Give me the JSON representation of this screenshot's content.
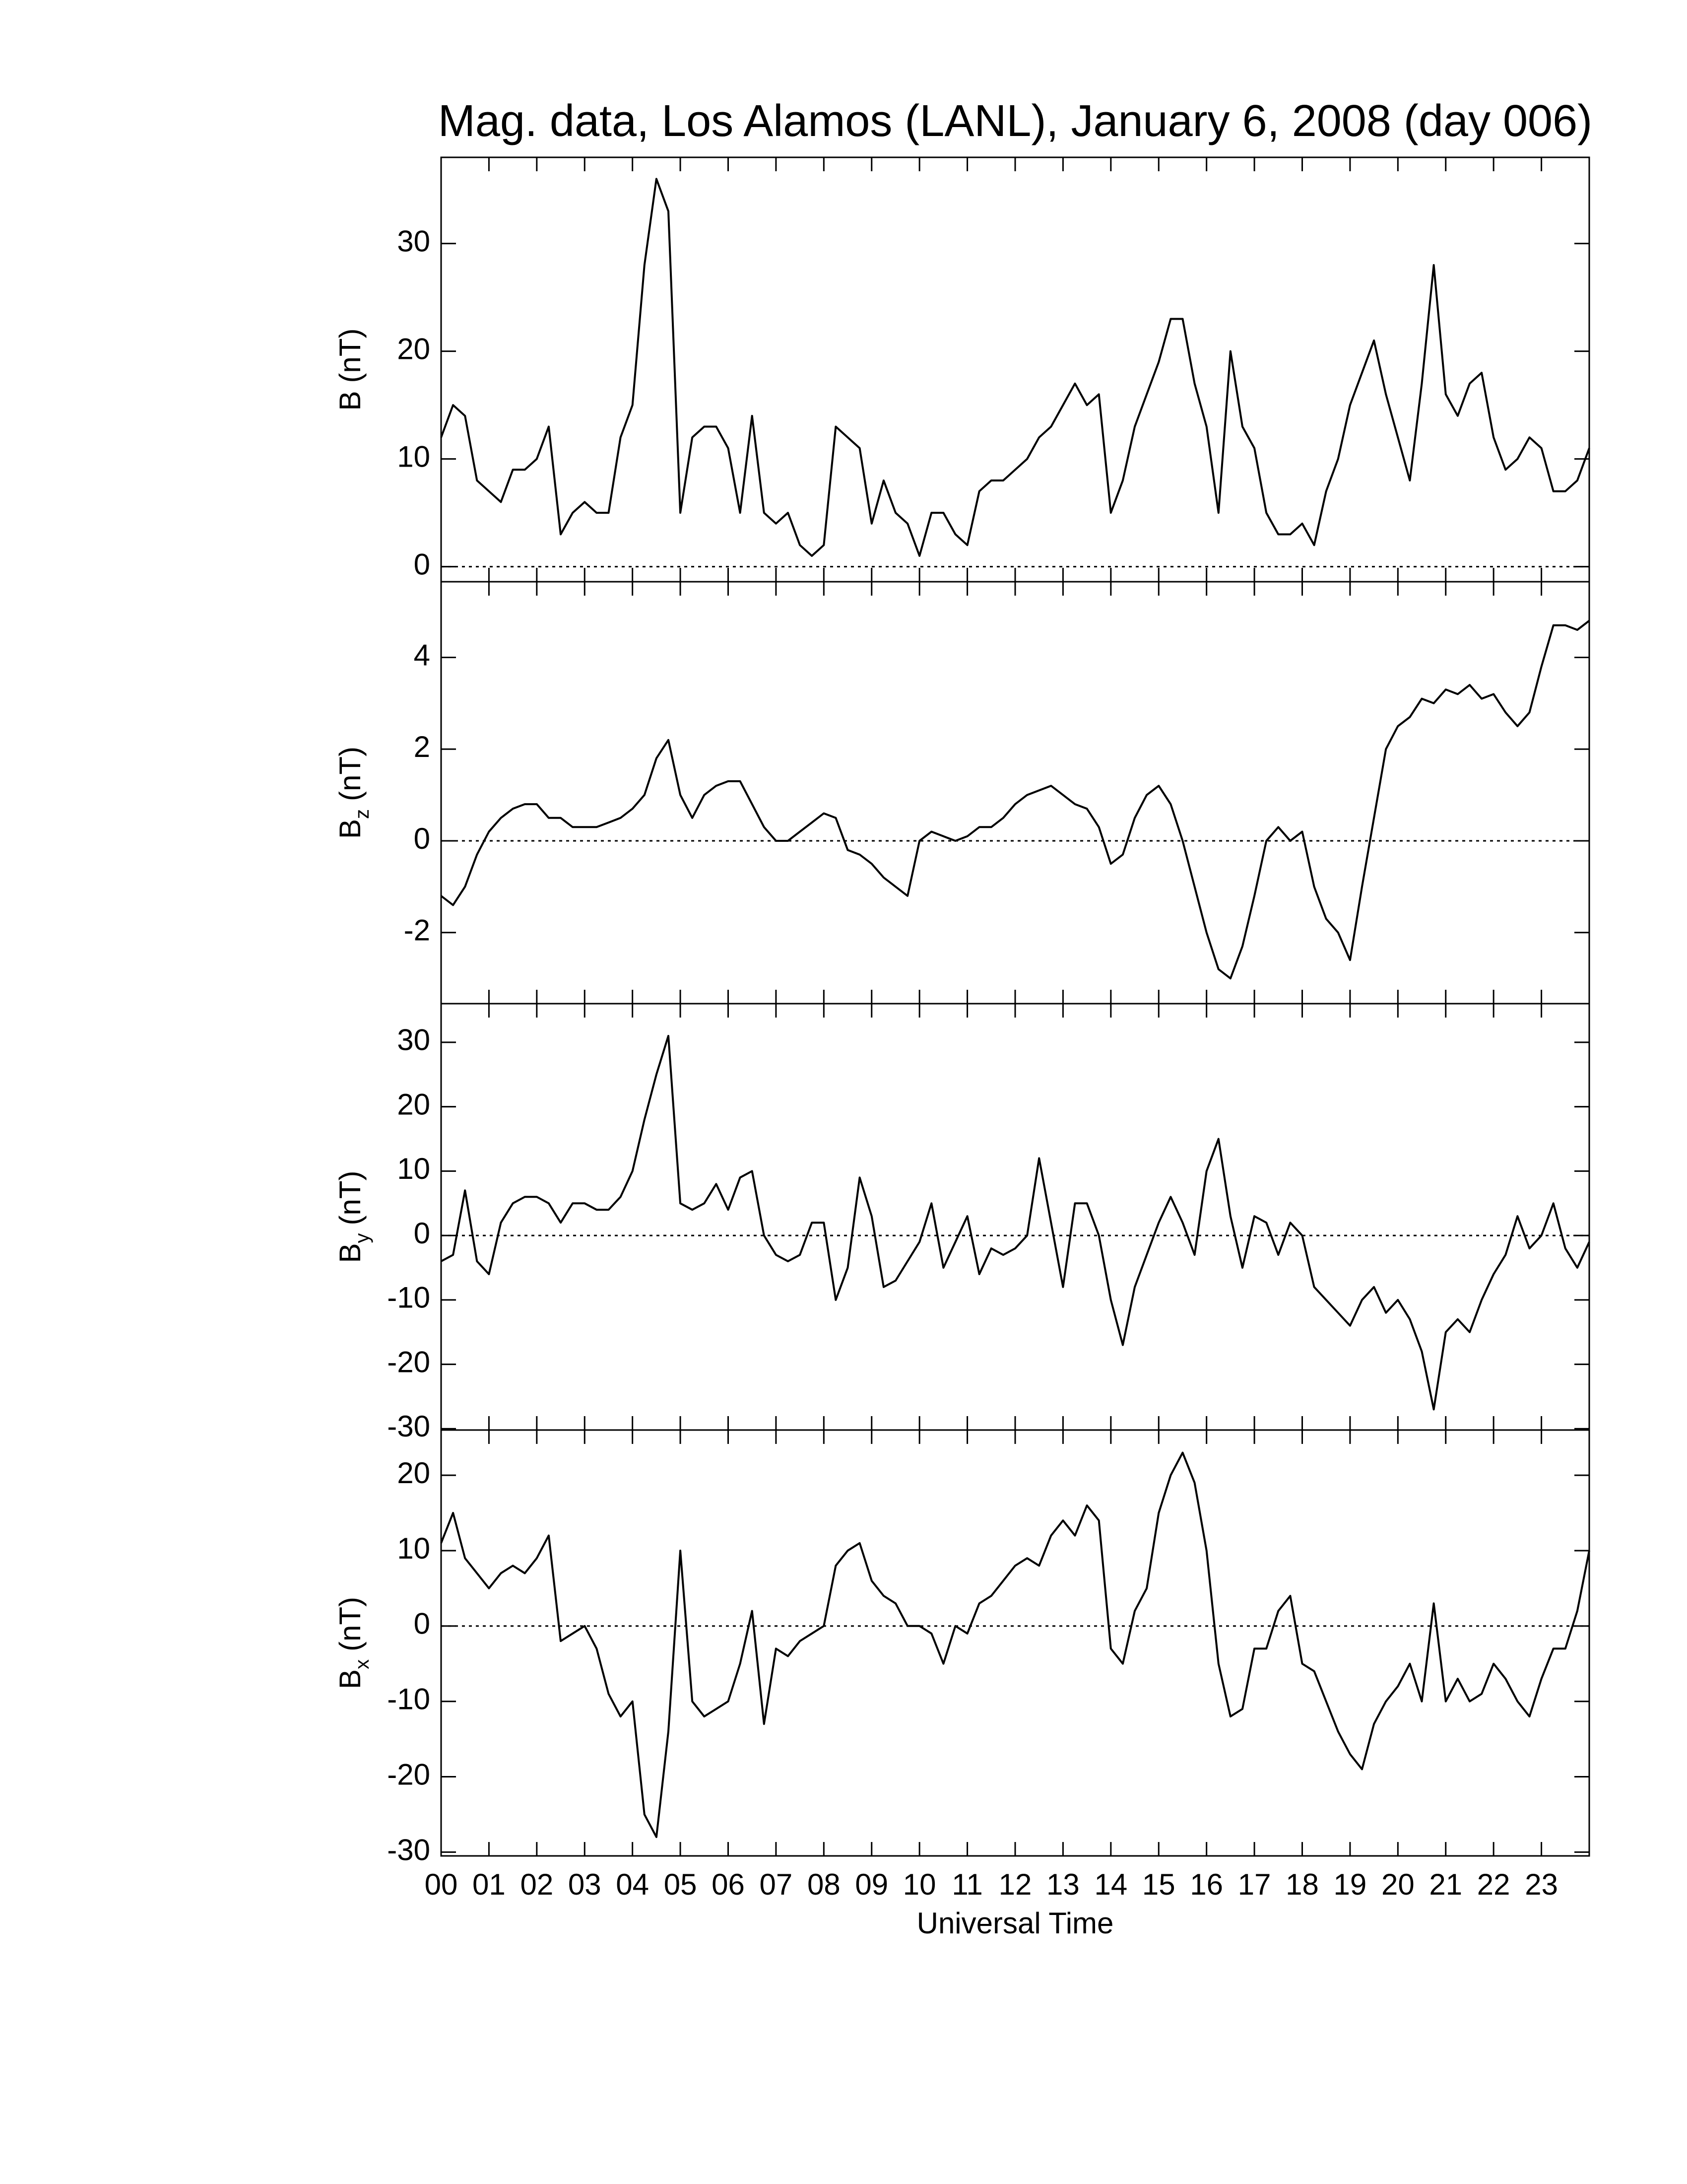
{
  "chart_data": [
    {
      "type": "line",
      "title": "Mag. data, Los Alamos (LANL), January 6, 2008 (day 006)",
      "ylabel": {
        "main": "B",
        "unit": "(nT)"
      },
      "x": [
        0,
        0.25,
        0.5,
        0.75,
        1,
        1.25,
        1.5,
        1.75,
        2,
        2.25,
        2.5,
        2.75,
        3,
        3.25,
        3.5,
        3.75,
        4,
        4.25,
        4.5,
        4.75,
        5,
        5.25,
        5.5,
        5.75,
        6,
        6.25,
        6.5,
        6.75,
        7,
        7.25,
        7.5,
        7.75,
        8,
        8.25,
        8.5,
        8.75,
        9,
        9.25,
        9.5,
        9.75,
        10,
        10.25,
        10.5,
        10.75,
        11,
        11.25,
        11.5,
        11.75,
        12,
        12.25,
        12.5,
        12.75,
        13,
        13.25,
        13.5,
        13.75,
        14,
        14.25,
        14.5,
        14.75,
        15,
        15.25,
        15.5,
        15.75,
        16,
        16.25,
        16.5,
        16.75,
        17,
        17.25,
        17.5,
        17.75,
        18,
        18.25,
        18.5,
        18.75,
        19,
        19.25,
        19.5,
        19.75,
        20,
        20.25,
        20.5,
        20.75,
        21,
        21.25,
        21.5,
        21.75,
        22,
        22.25,
        22.5,
        22.75,
        23,
        23.25,
        23.5,
        23.75,
        24
      ],
      "values": [
        12,
        15,
        14,
        8,
        7,
        6,
        9,
        9,
        10,
        13,
        3,
        5,
        6,
        5,
        5,
        12,
        15,
        28,
        36,
        33,
        5,
        12,
        13,
        13,
        11,
        5,
        14,
        5,
        4,
        5,
        2,
        1,
        2,
        13,
        12,
        11,
        4,
        8,
        5,
        4,
        1,
        5,
        5,
        3,
        2,
        7,
        8,
        8,
        9,
        10,
        12,
        13,
        15,
        17,
        15,
        16,
        5,
        8,
        13,
        16,
        19,
        23,
        23,
        17,
        13,
        5,
        20,
        13,
        11,
        5,
        3,
        3,
        4,
        2,
        7,
        10,
        15,
        18,
        21,
        16,
        12,
        8,
        17,
        28,
        16,
        14,
        17,
        18,
        12,
        9,
        10,
        12,
        11,
        7,
        7,
        8,
        11
      ],
      "color": "#000000",
      "xlim": [
        0,
        24
      ],
      "ylim": [
        -1.4,
        38
      ],
      "yticks": [
        0,
        10,
        20,
        30
      ],
      "hline": 0
    },
    {
      "type": "line",
      "ylabel": {
        "main": "B",
        "sub": "z",
        "unit": "(nT)"
      },
      "x": [
        0,
        0.25,
        0.5,
        0.75,
        1,
        1.25,
        1.5,
        1.75,
        2,
        2.25,
        2.5,
        2.75,
        3,
        3.25,
        3.5,
        3.75,
        4,
        4.25,
        4.5,
        4.75,
        5,
        5.25,
        5.5,
        5.75,
        6,
        6.25,
        6.5,
        6.75,
        7,
        7.25,
        7.5,
        7.75,
        8,
        8.25,
        8.5,
        8.75,
        9,
        9.25,
        9.5,
        9.75,
        10,
        10.25,
        10.5,
        10.75,
        11,
        11.25,
        11.5,
        11.75,
        12,
        12.25,
        12.5,
        12.75,
        13,
        13.25,
        13.5,
        13.75,
        14,
        14.25,
        14.5,
        14.75,
        15,
        15.25,
        15.5,
        15.75,
        16,
        16.25,
        16.5,
        16.75,
        17,
        17.25,
        17.5,
        17.75,
        18,
        18.25,
        18.5,
        18.75,
        19,
        19.25,
        19.5,
        19.75,
        20,
        20.25,
        20.5,
        20.75,
        21,
        21.25,
        21.5,
        21.75,
        22,
        22.25,
        22.5,
        22.75,
        23,
        23.25,
        23.5,
        23.75,
        24
      ],
      "values": [
        -1.2,
        -1.4,
        -1,
        -0.3,
        0.2,
        0.5,
        0.7,
        0.8,
        0.8,
        0.5,
        0.5,
        0.3,
        0.3,
        0.3,
        0.4,
        0.5,
        0.7,
        1,
        1.8,
        2.2,
        1,
        0.5,
        1,
        1.2,
        1.3,
        1.3,
        0.8,
        0.3,
        0,
        0,
        0.2,
        0.4,
        0.6,
        0.5,
        -0.2,
        -0.3,
        -0.5,
        -0.8,
        -1,
        -1.2,
        0,
        0.2,
        0.1,
        0,
        0.1,
        0.3,
        0.3,
        0.5,
        0.8,
        1,
        1.1,
        1.2,
        1,
        0.8,
        0.7,
        0.3,
        -0.5,
        -0.3,
        0.5,
        1,
        1.2,
        0.8,
        0,
        -1,
        -2,
        -2.8,
        -3,
        -2.3,
        -1.2,
        0,
        0.3,
        0,
        0.2,
        -1,
        -1.7,
        -2,
        -2.6,
        -1,
        0.5,
        2,
        2.5,
        2.7,
        3.1,
        3,
        3.3,
        3.2,
        3.4,
        3.1,
        3.2,
        2.8,
        2.5,
        2.8,
        3.8,
        4.7,
        4.7,
        4.6,
        4.8
      ],
      "color": "#000000",
      "xlim": [
        0,
        24
      ],
      "ylim": [
        -3.55,
        5.65
      ],
      "yticks": [
        -2,
        0,
        2,
        4
      ],
      "hline": 0
    },
    {
      "type": "line",
      "ylabel": {
        "main": "B",
        "sub": "y",
        "unit": "(nT)"
      },
      "x": [
        0,
        0.25,
        0.5,
        0.75,
        1,
        1.25,
        1.5,
        1.75,
        2,
        2.25,
        2.5,
        2.75,
        3,
        3.25,
        3.5,
        3.75,
        4,
        4.25,
        4.5,
        4.75,
        5,
        5.25,
        5.5,
        5.75,
        6,
        6.25,
        6.5,
        6.75,
        7,
        7.25,
        7.5,
        7.75,
        8,
        8.25,
        8.5,
        8.75,
        9,
        9.25,
        9.5,
        9.75,
        10,
        10.25,
        10.5,
        10.75,
        11,
        11.25,
        11.5,
        11.75,
        12,
        12.25,
        12.5,
        12.75,
        13,
        13.25,
        13.5,
        13.75,
        14,
        14.25,
        14.5,
        14.75,
        15,
        15.25,
        15.5,
        15.75,
        16,
        16.25,
        16.5,
        16.75,
        17,
        17.25,
        17.5,
        17.75,
        18,
        18.25,
        18.5,
        18.75,
        19,
        19.25,
        19.5,
        19.75,
        20,
        20.25,
        20.5,
        20.75,
        21,
        21.25,
        21.5,
        21.75,
        22,
        22.25,
        22.5,
        22.75,
        23,
        23.25,
        23.5,
        23.75,
        24
      ],
      "values": [
        -4,
        -3,
        7,
        -4,
        -6,
        2,
        5,
        6,
        6,
        5,
        2,
        5,
        5,
        4,
        4,
        6,
        10,
        18,
        25,
        31,
        5,
        4,
        5,
        8,
        4,
        9,
        10,
        0,
        -3,
        -4,
        -3,
        2,
        2,
        -10,
        -5,
        9,
        3,
        -8,
        -7,
        -4,
        -1,
        5,
        -5,
        -1,
        3,
        -6,
        -2,
        -3,
        -2,
        0,
        12,
        2,
        -8,
        5,
        5,
        0,
        -10,
        -17,
        -8,
        -3,
        2,
        6,
        2,
        -3,
        10,
        15,
        3,
        -5,
        3,
        2,
        -3,
        2,
        0,
        -8,
        -10,
        -12,
        -14,
        -10,
        -8,
        -12,
        -10,
        -13,
        -18,
        -27,
        -15,
        -13,
        -15,
        -10,
        -6,
        -3,
        3,
        -2,
        0,
        5,
        -2,
        -5,
        -1
      ],
      "color": "#000000",
      "xlim": [
        0,
        24
      ],
      "ylim": [
        -30.2,
        36
      ],
      "yticks": [
        -30,
        -20,
        -10,
        0,
        10,
        20,
        30
      ],
      "hline": 0
    },
    {
      "type": "line",
      "ylabel": {
        "main": "B",
        "sub": "x",
        "unit": "(nT)"
      },
      "xlabel": "Universal Time",
      "x": [
        0,
        0.25,
        0.5,
        0.75,
        1,
        1.25,
        1.5,
        1.75,
        2,
        2.25,
        2.5,
        2.75,
        3,
        3.25,
        3.5,
        3.75,
        4,
        4.25,
        4.5,
        4.75,
        5,
        5.25,
        5.5,
        5.75,
        6,
        6.25,
        6.5,
        6.75,
        7,
        7.25,
        7.5,
        7.75,
        8,
        8.25,
        8.5,
        8.75,
        9,
        9.25,
        9.5,
        9.75,
        10,
        10.25,
        10.5,
        10.75,
        11,
        11.25,
        11.5,
        11.75,
        12,
        12.25,
        12.5,
        12.75,
        13,
        13.25,
        13.5,
        13.75,
        14,
        14.25,
        14.5,
        14.75,
        15,
        15.25,
        15.5,
        15.75,
        16,
        16.25,
        16.5,
        16.75,
        17,
        17.25,
        17.5,
        17.75,
        18,
        18.25,
        18.5,
        18.75,
        19,
        19.25,
        19.5,
        19.75,
        20,
        20.25,
        20.5,
        20.75,
        21,
        21.25,
        21.5,
        21.75,
        22,
        22.25,
        22.5,
        22.75,
        23,
        23.25,
        23.5,
        23.75,
        24
      ],
      "values": [
        11,
        15,
        9,
        7,
        5,
        7,
        8,
        7,
        9,
        12,
        -2,
        -1,
        0,
        -3,
        -9,
        -12,
        -10,
        -25,
        -28,
        -14,
        10,
        -10,
        -12,
        -11,
        -10,
        -5,
        2,
        -13,
        -3,
        -4,
        -2,
        -1,
        0,
        8,
        10,
        11,
        6,
        4,
        3,
        0,
        0,
        -1,
        -5,
        0,
        -1,
        3,
        4,
        6,
        8,
        9,
        8,
        12,
        14,
        12,
        16,
        14,
        -3,
        -5,
        2,
        5,
        15,
        20,
        23,
        19,
        10,
        -5,
        -12,
        -11,
        -3,
        -3,
        2,
        4,
        -5,
        -6,
        -10,
        -14,
        -17,
        -19,
        -13,
        -10,
        -8,
        -5,
        -10,
        3,
        -10,
        -7,
        -10,
        -9,
        -5,
        -7,
        -10,
        -12,
        -7,
        -3,
        -3,
        2,
        10
      ],
      "color": "#000000",
      "xlim": [
        0,
        24
      ],
      "ylim": [
        -30.5,
        26
      ],
      "yticks": [
        -30,
        -20,
        -10,
        0,
        10,
        20
      ],
      "hline": 0,
      "xticks": [
        {
          "value": 0,
          "label": "00"
        },
        {
          "value": 1,
          "label": "01"
        },
        {
          "value": 2,
          "label": "02"
        },
        {
          "value": 3,
          "label": "03"
        },
        {
          "value": 4,
          "label": "04"
        },
        {
          "value": 5,
          "label": "05"
        },
        {
          "value": 6,
          "label": "06"
        },
        {
          "value": 7,
          "label": "07"
        },
        {
          "value": 8,
          "label": "08"
        },
        {
          "value": 9,
          "label": "09"
        },
        {
          "value": 10,
          "label": "10"
        },
        {
          "value": 11,
          "label": "11"
        },
        {
          "value": 12,
          "label": "12"
        },
        {
          "value": 13,
          "label": "13"
        },
        {
          "value": 14,
          "label": "14"
        },
        {
          "value": 15,
          "label": "15"
        },
        {
          "value": 16,
          "label": "16"
        },
        {
          "value": 17,
          "label": "17"
        },
        {
          "value": 18,
          "label": "18"
        },
        {
          "value": 19,
          "label": "19"
        },
        {
          "value": 20,
          "label": "20"
        },
        {
          "value": 21,
          "label": "21"
        },
        {
          "value": 22,
          "label": "22"
        },
        {
          "value": 23,
          "label": "23"
        }
      ]
    }
  ]
}
